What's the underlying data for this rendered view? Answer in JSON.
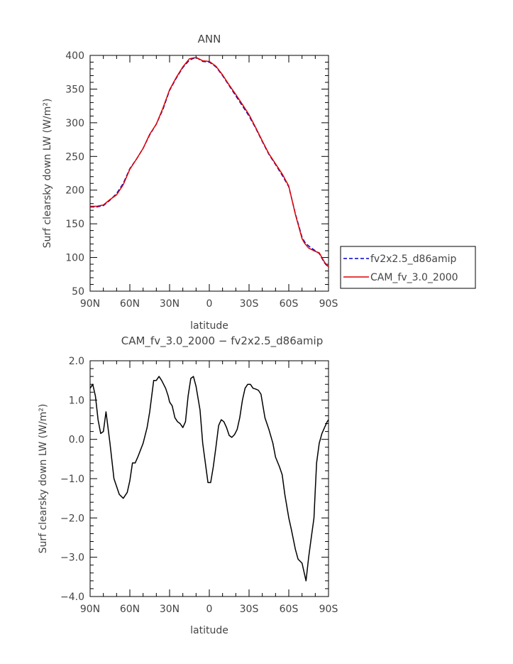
{
  "chart_data": [
    {
      "type": "line",
      "title": "ANN",
      "xlabel": "latitude",
      "ylabel": "Surf clearsky down LW (W/m²)",
      "xlim": [
        90,
        -90
      ],
      "ylim": [
        50,
        400
      ],
      "xticks": [
        90,
        60,
        30,
        0,
        -30,
        -60,
        -90
      ],
      "xtick_labels": [
        "90N",
        "60N",
        "30N",
        "0",
        "30S",
        "60S",
        "90S"
      ],
      "yticks": [
        50,
        100,
        150,
        200,
        250,
        300,
        350,
        400
      ],
      "ytick_labels": [
        "50",
        "100",
        "150",
        "200",
        "250",
        "300",
        "350",
        "400"
      ],
      "legend_position": "right",
      "series": [
        {
          "name": "fv2x2.5_d86amip",
          "color": "#0000cc",
          "style": "dashed",
          "x": [
            90,
            85,
            80,
            75,
            70,
            65,
            60,
            55,
            50,
            45,
            40,
            35,
            30,
            25,
            20,
            15,
            10,
            5,
            0,
            -5,
            -10,
            -15,
            -20,
            -25,
            -30,
            -35,
            -40,
            -45,
            -50,
            -55,
            -60,
            -65,
            -70,
            -72,
            -75,
            -80,
            -83,
            -87,
            -90
          ],
          "y": [
            175,
            175,
            177,
            185,
            195,
            210,
            232,
            246,
            262,
            282,
            298,
            320,
            348,
            366,
            382,
            393,
            397,
            391,
            390,
            383,
            370,
            355,
            340,
            325,
            310,
            292,
            272,
            253,
            238,
            222,
            205,
            165,
            130,
            123,
            117,
            110,
            106,
            92,
            85
          ]
        },
        {
          "name": "CAM_fv_3.0_2000",
          "color": "#dd0000",
          "style": "solid",
          "x": [
            90,
            85,
            80,
            75,
            70,
            65,
            60,
            55,
            50,
            45,
            40,
            35,
            30,
            25,
            20,
            15,
            10,
            5,
            0,
            -5,
            -10,
            -15,
            -20,
            -25,
            -30,
            -35,
            -40,
            -45,
            -50,
            -55,
            -60,
            -65,
            -70,
            -72,
            -75,
            -80,
            -83,
            -87,
            -90
          ],
          "y": [
            176,
            176,
            178,
            186,
            193,
            208,
            231,
            246,
            262,
            283,
            298,
            322,
            349,
            367,
            383,
            395,
            397,
            392,
            391,
            384,
            371,
            356,
            342,
            327,
            312,
            293,
            273,
            254,
            239,
            224,
            206,
            164,
            128,
            121,
            114,
            109,
            107,
            93,
            86
          ]
        }
      ]
    },
    {
      "type": "line",
      "title": "CAM_fv_3.0_2000 − fv2x2.5_d86amip",
      "xlabel": "latitude",
      "ylabel": "Surf clearsky down LW (W/m²)",
      "xlim": [
        90,
        -90
      ],
      "ylim": [
        -4.0,
        2.0
      ],
      "xticks": [
        90,
        60,
        30,
        0,
        -30,
        -60,
        -90
      ],
      "xtick_labels": [
        "90N",
        "60N",
        "30N",
        "0",
        "30S",
        "60S",
        "90S"
      ],
      "yticks": [
        -4.0,
        -3.0,
        -2.0,
        -1.0,
        0.0,
        1.0,
        2.0
      ],
      "ytick_labels": [
        "−4.0",
        "−3.0",
        "−2.0",
        "−1.0",
        "0.0",
        "1.0",
        "2.0"
      ],
      "series": [
        {
          "color": "#000000",
          "style": "solid",
          "x": [
            90,
            88,
            86,
            84,
            82,
            80,
            78,
            75,
            72,
            68,
            65,
            62,
            60,
            58,
            56,
            54,
            50,
            47,
            45,
            42,
            40,
            38,
            36,
            33,
            31,
            30,
            28,
            26,
            24,
            22,
            20,
            18,
            16,
            14,
            12,
            10,
            7,
            5,
            3,
            1,
            -1,
            -3,
            -5,
            -7,
            -9,
            -11,
            -13,
            -15,
            -17,
            -19,
            -21,
            -23,
            -25,
            -27,
            -29,
            -31,
            -33,
            -35,
            -37,
            -39,
            -42,
            -45,
            -48,
            -50,
            -53,
            -55,
            -57,
            -60,
            -62,
            -65,
            -67,
            -70,
            -73,
            -75,
            -77,
            -79,
            -80,
            -81,
            -83,
            -85,
            -87,
            -89,
            -90
          ],
          "y": [
            1.3,
            1.4,
            1.1,
            0.5,
            0.15,
            0.2,
            0.7,
            -0.1,
            -1.0,
            -1.4,
            -1.5,
            -1.35,
            -1.05,
            -0.6,
            -0.6,
            -0.45,
            -0.1,
            0.3,
            0.7,
            1.5,
            1.5,
            1.6,
            1.5,
            1.3,
            1.1,
            0.95,
            0.85,
            0.55,
            0.45,
            0.4,
            0.3,
            0.45,
            1.1,
            1.55,
            1.6,
            1.35,
            0.75,
            -0.1,
            -0.6,
            -1.1,
            -1.1,
            -0.7,
            -0.2,
            0.35,
            0.5,
            0.45,
            0.3,
            0.1,
            0.05,
            0.12,
            0.25,
            0.55,
            1.0,
            1.3,
            1.4,
            1.4,
            1.3,
            1.28,
            1.25,
            1.15,
            0.55,
            0.25,
            -0.1,
            -0.45,
            -0.7,
            -0.9,
            -1.4,
            -2.0,
            -2.3,
            -2.8,
            -3.05,
            -3.15,
            -3.6,
            -3.0,
            -2.5,
            -2.0,
            -1.3,
            -0.6,
            -0.1,
            0.15,
            0.3,
            0.45,
            0.5
          ]
        }
      ]
    }
  ]
}
